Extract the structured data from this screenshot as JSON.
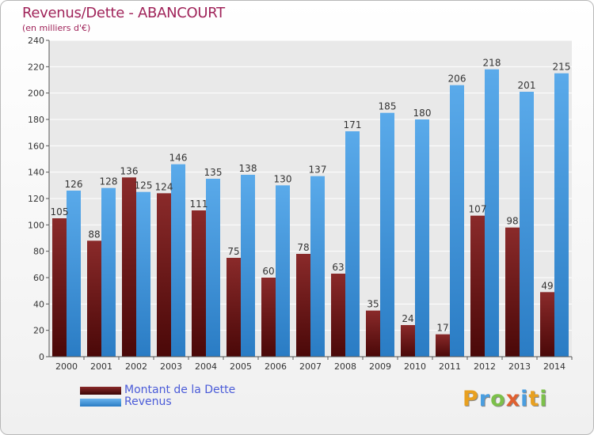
{
  "title": "Revenus/Dette - ABANCOURT",
  "subtitle": "(en milliers d'€)",
  "colors": {
    "dette": "#7a1c1c",
    "revenus": "#4a9ee0",
    "axis_text": "#333333",
    "grid": "#ffffff",
    "plot_bg": "#e9e9e9",
    "title": "#a0245a"
  },
  "legend": [
    {
      "label": "Montant de la Dette",
      "color": "#6e1010"
    },
    {
      "label": "Revenus",
      "color": "#4a9ee0"
    }
  ],
  "logo": {
    "text": "Proxiti"
  },
  "chart_data": {
    "type": "bar",
    "title": "Revenus/Dette - ABANCOURT",
    "subtitle": "(en milliers d'€)",
    "categories": [
      "2000",
      "2001",
      "2002",
      "2003",
      "2004",
      "2005",
      "2006",
      "2007",
      "2008",
      "2009",
      "2010",
      "2011",
      "2012",
      "2013",
      "2014"
    ],
    "series": [
      {
        "name": "Montant de la Dette",
        "values": [
          105,
          88,
          136,
          124,
          111,
          75,
          60,
          78,
          63,
          35,
          24,
          17,
          107,
          98,
          49
        ]
      },
      {
        "name": "Revenus",
        "values": [
          126,
          128,
          125,
          146,
          135,
          138,
          130,
          137,
          171,
          185,
          180,
          206,
          218,
          201,
          215
        ]
      }
    ],
    "ylim": [
      0,
      240
    ],
    "yticks": [
      0,
      20,
      40,
      60,
      80,
      100,
      120,
      140,
      160,
      180,
      200,
      220,
      240
    ],
    "grid": true,
    "legend_position": "bottom-left"
  }
}
